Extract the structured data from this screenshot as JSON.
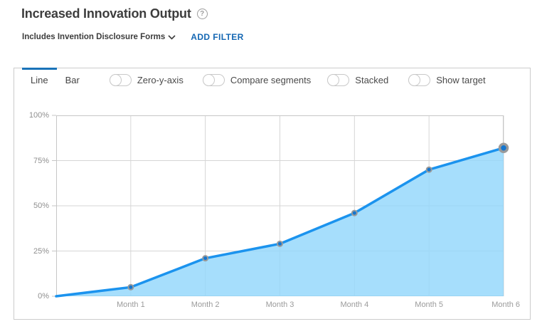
{
  "header": {
    "title": "Increased Innovation Output",
    "help_glyph": "?",
    "filter_label": "Includes Invention Disclosure Forms",
    "add_filter_label": "ADD FILTER"
  },
  "toolbar": {
    "tabs": [
      {
        "label": "Line",
        "active": true
      },
      {
        "label": "Bar",
        "active": false
      }
    ],
    "toggles": [
      {
        "label": "Zero-y-axis",
        "on": false
      },
      {
        "label": "Compare segments",
        "on": false
      },
      {
        "label": "Stacked",
        "on": false
      },
      {
        "label": "Show target",
        "on": false
      }
    ]
  },
  "chart_data": {
    "type": "area",
    "title": "Increased Innovation Output",
    "categories": [
      "Month 1",
      "Month 2",
      "Month 3",
      "Month 4",
      "Month 5",
      "Month 6"
    ],
    "series": [
      {
        "name": "Increased Innovation Output",
        "values": [
          5,
          21,
          29,
          46,
          70,
          82
        ]
      }
    ],
    "origin_value": 0,
    "xlabel": "",
    "ylabel": "",
    "ylim": [
      0,
      100
    ],
    "y_ticks": [
      0,
      25,
      50,
      75,
      100
    ],
    "y_tick_labels_desc": [
      "100%",
      "75%",
      "50%",
      "25%",
      "0%"
    ],
    "grid": true,
    "legend": "none",
    "highlight_last_point": true
  },
  "colors": {
    "accent_blue": "#1a73b8",
    "link_blue": "#1467b3",
    "line": "#1b93ee",
    "fill": "#93d7fb",
    "point": "#1576cf",
    "point_ring": "#9a9a9a",
    "gridline": "#d6d6d6",
    "plot_border": "#c6c6c6"
  }
}
